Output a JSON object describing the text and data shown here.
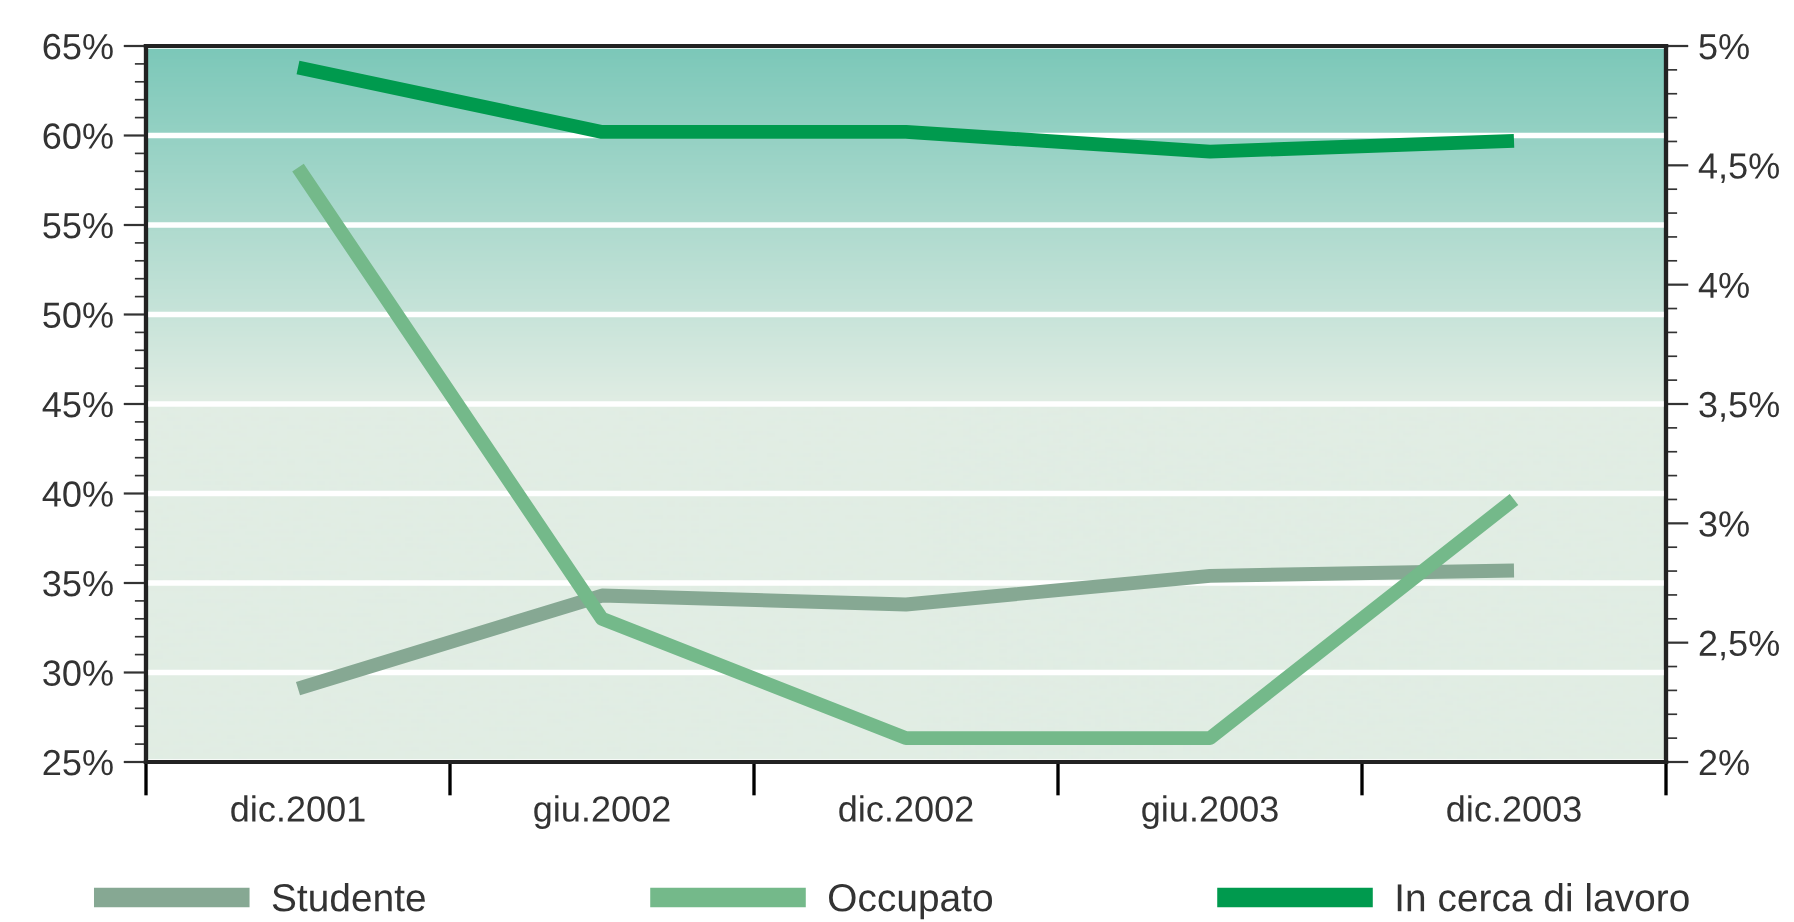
{
  "chart_data": {
    "type": "line",
    "categories": [
      "dic.2001",
      "giu.2002",
      "dic.2002",
      "giu.2003",
      "dic.2003"
    ],
    "series": [
      {
        "name": "Studente",
        "color": "#86a893",
        "values": [
          29.1,
          34.3,
          33.8,
          35.4,
          35.7
        ]
      },
      {
        "name": "Occupato",
        "color": "#74b98a",
        "axis": "y2",
        "values": [
          4.49,
          2.6,
          2.1,
          2.1,
          3.1
        ]
      },
      {
        "name": "In cerca di lavoro",
        "color": "#009a4e",
        "values": [
          63.8,
          60.2,
          60.2,
          59.1,
          59.7
        ]
      }
    ],
    "ylim": [
      25,
      65
    ],
    "yticks": [
      {
        "value": 25,
        "label": "25%"
      },
      {
        "value": 30,
        "label": "30%"
      },
      {
        "value": 35,
        "label": "35%"
      },
      {
        "value": 40,
        "label": "40%"
      },
      {
        "value": 45,
        "label": "45%"
      },
      {
        "value": 50,
        "label": "50%"
      },
      {
        "value": 55,
        "label": "55%"
      },
      {
        "value": 60,
        "label": "60%"
      },
      {
        "value": 65,
        "label": "65%"
      }
    ],
    "y2lim": [
      2,
      5
    ],
    "y2ticks": [
      {
        "value": 2,
        "label": "2%"
      },
      {
        "value": 2.5,
        "label": "2,5%"
      },
      {
        "value": 3,
        "label": "3%"
      },
      {
        "value": 3.5,
        "label": "3,5%"
      },
      {
        "value": 4,
        "label": "4%"
      },
      {
        "value": 4.5,
        "label": "4,5%"
      },
      {
        "value": 5,
        "label": "5%"
      }
    ],
    "grid": "y",
    "legend": "bottom",
    "marker": "none",
    "line_style": "solid"
  }
}
